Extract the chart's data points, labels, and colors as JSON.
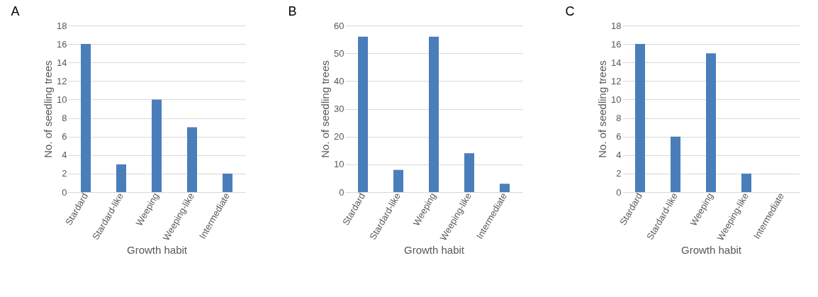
{
  "chart_data": [
    {
      "type": "bar",
      "title": "A",
      "xlabel": "Growth habit",
      "ylabel": "No. of seedling trees",
      "categories": [
        "Stardard",
        "Stardard-like",
        "Weeping",
        "Weeping-like",
        "Intermediate"
      ],
      "values": [
        16,
        3,
        10,
        7,
        2
      ],
      "color": "#4a7ebb",
      "ylim": [
        0,
        18
      ],
      "yticks": [
        0,
        2,
        4,
        6,
        8,
        10,
        12,
        14,
        16,
        18
      ],
      "grid": "y"
    },
    {
      "type": "bar",
      "title": "B",
      "xlabel": "Growth habit",
      "ylabel": "No. of seedling trees",
      "categories": [
        "Stardard",
        "Stardard-like",
        "Weeping",
        "Weeping-like",
        "Intermediate"
      ],
      "values": [
        56,
        8,
        56,
        14,
        3
      ],
      "color": "#4a7ebb",
      "ylim": [
        0,
        60
      ],
      "yticks": [
        0,
        10,
        20,
        30,
        40,
        50,
        60
      ],
      "grid": "y"
    },
    {
      "type": "bar",
      "title": "C",
      "xlabel": "Growth habit",
      "ylabel": "No. of seedling trees",
      "categories": [
        "Stardard",
        "Stardard-like",
        "Weeping",
        "Weeping-like",
        "Intermediate"
      ],
      "values": [
        16,
        6,
        15,
        2,
        0
      ],
      "color": "#4a7ebb",
      "ylim": [
        0,
        18
      ],
      "yticks": [
        0,
        2,
        4,
        6,
        8,
        10,
        12,
        14,
        16,
        18
      ],
      "grid": "y"
    }
  ]
}
